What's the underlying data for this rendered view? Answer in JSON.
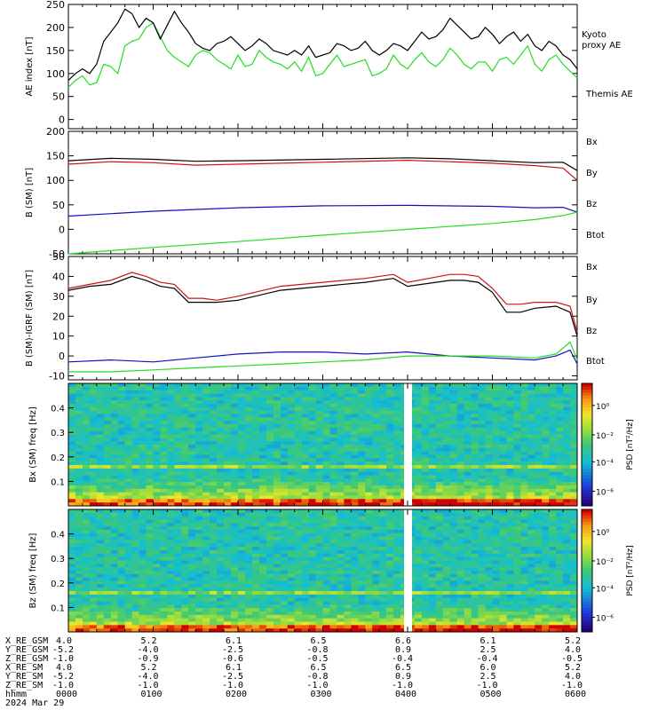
{
  "chart_data": [
    {
      "type": "line",
      "panel": "ae",
      "ylabel": "AE index [nT]",
      "ylim": [
        -20,
        250
      ],
      "yticks": [
        0,
        50,
        100,
        150,
        200,
        250
      ],
      "grid": false,
      "legend_placement": "right",
      "series": [
        {
          "name": "Kyoto proxy AE",
          "color": "#22dd22",
          "x": [
            0,
            5,
            10,
            15,
            20,
            25,
            30,
            35,
            40,
            45,
            50,
            55,
            60,
            65,
            70,
            75,
            80,
            85,
            90,
            95,
            100,
            105,
            110,
            115,
            120,
            125,
            130,
            135,
            140,
            145,
            150,
            155,
            160,
            165,
            170,
            175,
            180,
            185,
            190,
            195,
            200,
            205,
            210,
            215,
            220,
            225,
            230,
            235,
            240,
            245,
            250,
            255,
            260,
            265,
            270,
            275,
            280,
            285,
            290,
            295,
            300,
            305,
            310,
            315,
            320,
            325,
            330,
            335,
            340,
            345,
            350,
            355,
            360
          ],
          "y": [
            70,
            85,
            95,
            75,
            80,
            120,
            115,
            100,
            160,
            170,
            175,
            200,
            210,
            180,
            150,
            135,
            125,
            115,
            140,
            150,
            145,
            130,
            120,
            110,
            140,
            115,
            120,
            150,
            135,
            125,
            120,
            110,
            125,
            105,
            135,
            95,
            100,
            120,
            140,
            115,
            120,
            125,
            130,
            95,
            100,
            110,
            140,
            120,
            110,
            130,
            145,
            125,
            115,
            130,
            155,
            140,
            120,
            110,
            125,
            125,
            105,
            130,
            135,
            120,
            140,
            160,
            120,
            105,
            130,
            140,
            120,
            105,
            90
          ]
        },
        {
          "name": "Themis AE",
          "color": "#000000",
          "x": [
            0,
            5,
            10,
            15,
            20,
            25,
            30,
            35,
            40,
            45,
            50,
            55,
            60,
            65,
            70,
            75,
            80,
            85,
            90,
            95,
            100,
            105,
            110,
            115,
            120,
            125,
            130,
            135,
            140,
            145,
            150,
            155,
            160,
            165,
            170,
            175,
            180,
            185,
            190,
            195,
            200,
            205,
            210,
            215,
            220,
            225,
            230,
            235,
            240,
            245,
            250,
            255,
            260,
            265,
            270,
            275,
            280,
            285,
            290,
            295,
            300,
            305,
            310,
            315,
            320,
            325,
            330,
            335,
            340,
            345,
            350,
            355,
            360
          ],
          "y": [
            85,
            100,
            110,
            100,
            120,
            170,
            190,
            210,
            240,
            230,
            200,
            220,
            210,
            175,
            205,
            235,
            210,
            190,
            165,
            155,
            150,
            165,
            170,
            180,
            165,
            150,
            160,
            175,
            165,
            150,
            145,
            140,
            150,
            140,
            160,
            135,
            140,
            145,
            165,
            160,
            150,
            155,
            170,
            150,
            140,
            150,
            165,
            160,
            150,
            170,
            190,
            175,
            180,
            195,
            220,
            205,
            190,
            175,
            180,
            200,
            185,
            165,
            180,
            190,
            170,
            185,
            160,
            150,
            170,
            160,
            140,
            130,
            110
          ]
        }
      ],
      "labels": {
        "kyoto_line1": "Kyoto",
        "kyoto_line2": "proxy AE",
        "themis": "Themis AE"
      }
    },
    {
      "type": "line",
      "panel": "bsm",
      "ylabel": "B (SM) [nT]",
      "ylim": [
        -50,
        200
      ],
      "yticks": [
        -50,
        0,
        50,
        100,
        150,
        200
      ],
      "grid": false,
      "legend_placement": "right",
      "series": [
        {
          "name": "Bx",
          "color": "#1010c0",
          "x": [
            0,
            60,
            120,
            180,
            240,
            300,
            330,
            350,
            360
          ],
          "y": [
            27,
            37,
            44,
            48,
            49,
            47,
            44,
            45,
            35
          ]
        },
        {
          "name": "By",
          "color": "#22dd22",
          "x": [
            0,
            60,
            120,
            180,
            240,
            300,
            330,
            350,
            360
          ],
          "y": [
            -50,
            -37,
            -25,
            -12,
            0,
            12,
            20,
            28,
            35
          ]
        },
        {
          "name": "Bz",
          "color": "#d01010",
          "x": [
            0,
            30,
            60,
            90,
            120,
            180,
            240,
            270,
            300,
            330,
            350,
            360
          ],
          "y": [
            133,
            138,
            136,
            131,
            133,
            137,
            141,
            138,
            135,
            130,
            125,
            100
          ]
        },
        {
          "name": "Btot",
          "color": "#000000",
          "x": [
            0,
            30,
            60,
            90,
            120,
            180,
            240,
            270,
            300,
            330,
            350,
            360
          ],
          "y": [
            140,
            145,
            143,
            139,
            140,
            143,
            146,
            144,
            140,
            136,
            137,
            120
          ]
        }
      ]
    },
    {
      "type": "line",
      "panel": "bsm-igrf",
      "ylabel": "B (SM)-IGRF (SM) [nT]",
      "ylim": [
        -12,
        50
      ],
      "yticks": [
        -10,
        0,
        10,
        20,
        30,
        40,
        50
      ],
      "grid": false,
      "legend_placement": "right",
      "series": [
        {
          "name": "Bx",
          "color": "#1010c0",
          "x": [
            0,
            30,
            60,
            90,
            120,
            150,
            180,
            210,
            240,
            270,
            300,
            330,
            345,
            355,
            360
          ],
          "y": [
            -3,
            -2,
            -3,
            -1,
            1,
            2,
            2,
            1,
            2,
            0,
            -1,
            -2,
            0,
            3,
            -4
          ]
        },
        {
          "name": "By",
          "color": "#22dd22",
          "x": [
            0,
            30,
            60,
            90,
            120,
            150,
            180,
            210,
            240,
            270,
            300,
            330,
            345,
            355,
            360
          ],
          "y": [
            -8,
            -8,
            -7,
            -6,
            -5,
            -4,
            -3,
            -2,
            0,
            0,
            0,
            -1,
            1,
            7,
            -2
          ]
        },
        {
          "name": "Bz",
          "color": "#d01010",
          "x": [
            0,
            15,
            30,
            45,
            55,
            65,
            75,
            85,
            95,
            105,
            120,
            150,
            180,
            210,
            230,
            240,
            270,
            280,
            290,
            300,
            310,
            320,
            330,
            345,
            355,
            360
          ],
          "y": [
            34,
            36,
            38,
            42,
            40,
            37,
            36,
            29,
            29,
            28,
            30,
            35,
            37,
            39,
            41,
            37,
            41,
            41,
            40,
            34,
            26,
            26,
            27,
            27,
            25,
            12
          ]
        },
        {
          "name": "Btot",
          "color": "#000000",
          "x": [
            0,
            15,
            30,
            45,
            55,
            65,
            75,
            85,
            95,
            105,
            120,
            150,
            180,
            210,
            230,
            240,
            270,
            280,
            290,
            300,
            310,
            320,
            330,
            345,
            355,
            360
          ],
          "y": [
            33,
            35,
            36,
            40,
            38,
            35,
            34,
            27,
            27,
            27,
            28,
            33,
            35,
            37,
            39,
            35,
            38,
            38,
            37,
            32,
            22,
            22,
            24,
            25,
            22,
            10
          ]
        }
      ]
    },
    {
      "type": "heatmap",
      "panel": "spec-bx",
      "ylabel": "Bx (SM) freq [Hz]",
      "ylim": [
        0,
        0.5
      ],
      "yticks": [
        0.1,
        0.2,
        0.3,
        0.4
      ],
      "colorbar_label": "PSD [nT²/Hz]",
      "colorbar_ticks": [
        "10⁰",
        "10⁻²",
        "10⁻⁴",
        "10⁻⁶"
      ],
      "gap_x": 240
    },
    {
      "type": "heatmap",
      "panel": "spec-bz",
      "ylabel": "Bz (SM) freq [Hz]",
      "ylim": [
        0,
        0.5
      ],
      "yticks": [
        0.1,
        0.2,
        0.3,
        0.4
      ],
      "colorbar_label": "PSD [nT²/Hz]",
      "colorbar_ticks": [
        "10⁰",
        "10⁻²",
        "10⁻⁴",
        "10⁻⁶"
      ],
      "gap_x": 240
    }
  ],
  "colors": {
    "bx": "#1010c0",
    "by": "#22dd22",
    "bz": "#d01010",
    "btot": "#000000"
  },
  "orbit": {
    "rows": [
      {
        "label": "X_RE_GSM",
        "values": [
          "4.0",
          "5.2",
          "6.1",
          "6.5",
          "6.6",
          "6.1",
          "5.2"
        ]
      },
      {
        "label": "Y_RE_GSM",
        "values": [
          "-5.2",
          "-4.0",
          "-2.5",
          "-0.8",
          "0.9",
          "2.5",
          "4.0"
        ]
      },
      {
        "label": "Z_RE_GSM",
        "values": [
          "-1.0",
          "-0.9",
          "-0.6",
          "-0.5",
          "-0.4",
          "-0.4",
          "-0.5"
        ]
      },
      {
        "label": "X_RE_SM",
        "values": [
          "4.0",
          "5.2",
          "6.1",
          "6.5",
          "6.5",
          "6.0",
          "5.2"
        ]
      },
      {
        "label": "Y_RE_SM",
        "values": [
          "-5.2",
          "-4.0",
          "-2.5",
          "-0.8",
          "0.9",
          "2.5",
          "4.0"
        ]
      },
      {
        "label": "Z_RE_SM",
        "values": [
          "-1.0",
          "-1.0",
          "-1.0",
          "-1.0",
          "-1.0",
          "-1.0",
          "-1.0"
        ]
      },
      {
        "label": "hhmm",
        "values": [
          "0000",
          "0100",
          "0200",
          "0300",
          "0400",
          "0500",
          "0600"
        ]
      }
    ],
    "date": "2024 Mar 29"
  }
}
